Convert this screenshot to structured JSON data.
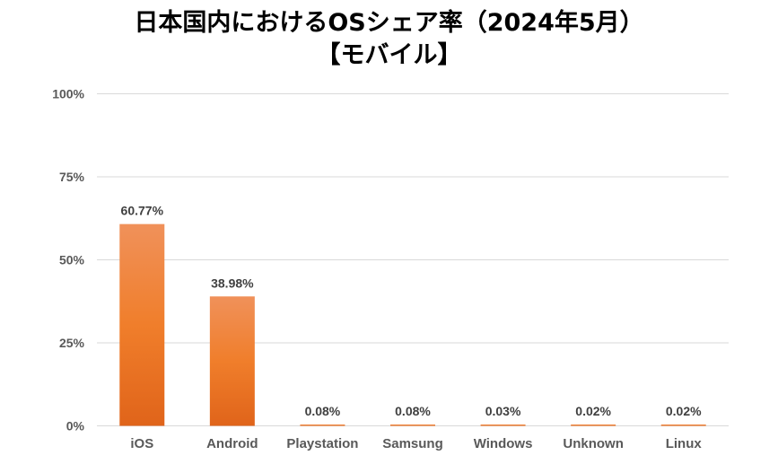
{
  "chart_data": {
    "type": "bar",
    "title": "日本国内におけるOSシェア率（2024年5月）",
    "subtitle": "【モバイル】",
    "categories": [
      "iOS",
      "Android",
      "Playstation",
      "Samsung",
      "Windows",
      "Unknown",
      "Linux"
    ],
    "values": [
      60.77,
      38.98,
      0.08,
      0.08,
      0.03,
      0.02,
      0.02
    ],
    "data_labels": [
      "60.77%",
      "38.98%",
      "0.08%",
      "0.08%",
      "0.03%",
      "0.02%",
      "0.02%"
    ],
    "y_ticks": [
      0,
      25,
      50,
      75,
      100
    ],
    "y_tick_labels": [
      "0%",
      "25%",
      "50%",
      "75%",
      "100%"
    ],
    "ylim": [
      0,
      100
    ],
    "xlabel": "",
    "ylabel": "",
    "grid": true,
    "legend": "none",
    "colors": {
      "bar_top": "#F0915A",
      "bar_mid": "#F07E2B",
      "bar_bottom": "#E0641A",
      "grid": "#D9D9D9",
      "axis_text": "#595959"
    }
  }
}
